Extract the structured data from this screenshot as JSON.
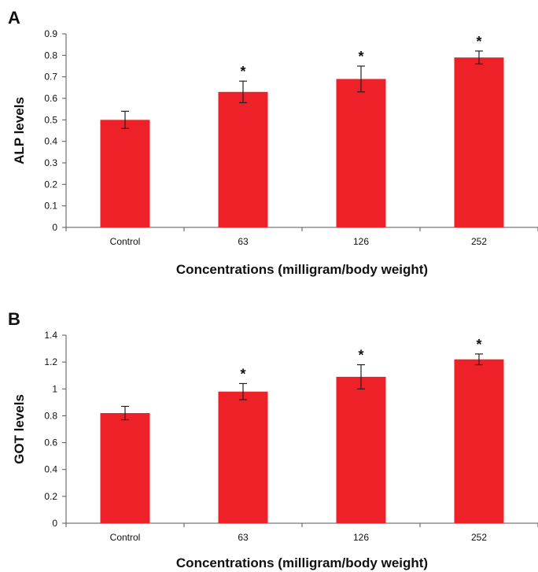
{
  "chart_data": [
    {
      "type": "bar",
      "panel": "A",
      "categories": [
        "Control",
        "63",
        "126",
        "252"
      ],
      "values": [
        0.5,
        0.63,
        0.69,
        0.79
      ],
      "errors": [
        0.04,
        0.05,
        0.06,
        0.03
      ],
      "significance": [
        "",
        "*",
        "*",
        "*"
      ],
      "xlabel": "Concentrations (milligram/body weight)",
      "ylabel": "ALP levels",
      "ylim": [
        0,
        0.9
      ],
      "yticks": [
        "0",
        "0.1",
        "0.2",
        "0.3",
        "0.4",
        "0.5",
        "0.6",
        "0.7",
        "0.8",
        "0.9"
      ],
      "bar_color": "#ee2128",
      "grid": false
    },
    {
      "type": "bar",
      "panel": "B",
      "categories": [
        "Control",
        "63",
        "126",
        "252"
      ],
      "values": [
        0.82,
        0.98,
        1.09,
        1.22
      ],
      "errors": [
        0.05,
        0.06,
        0.09,
        0.04
      ],
      "significance": [
        "",
        "*",
        "*",
        "*"
      ],
      "xlabel": "Concentrations (milligram/body weight)",
      "ylabel": "GOT levels",
      "ylim": [
        0,
        1.4
      ],
      "yticks": [
        "0",
        "0.2",
        "0.4",
        "0.6",
        "0.8",
        "1",
        "1.2",
        "1.4"
      ],
      "bar_color": "#ee2128",
      "grid": false
    }
  ]
}
